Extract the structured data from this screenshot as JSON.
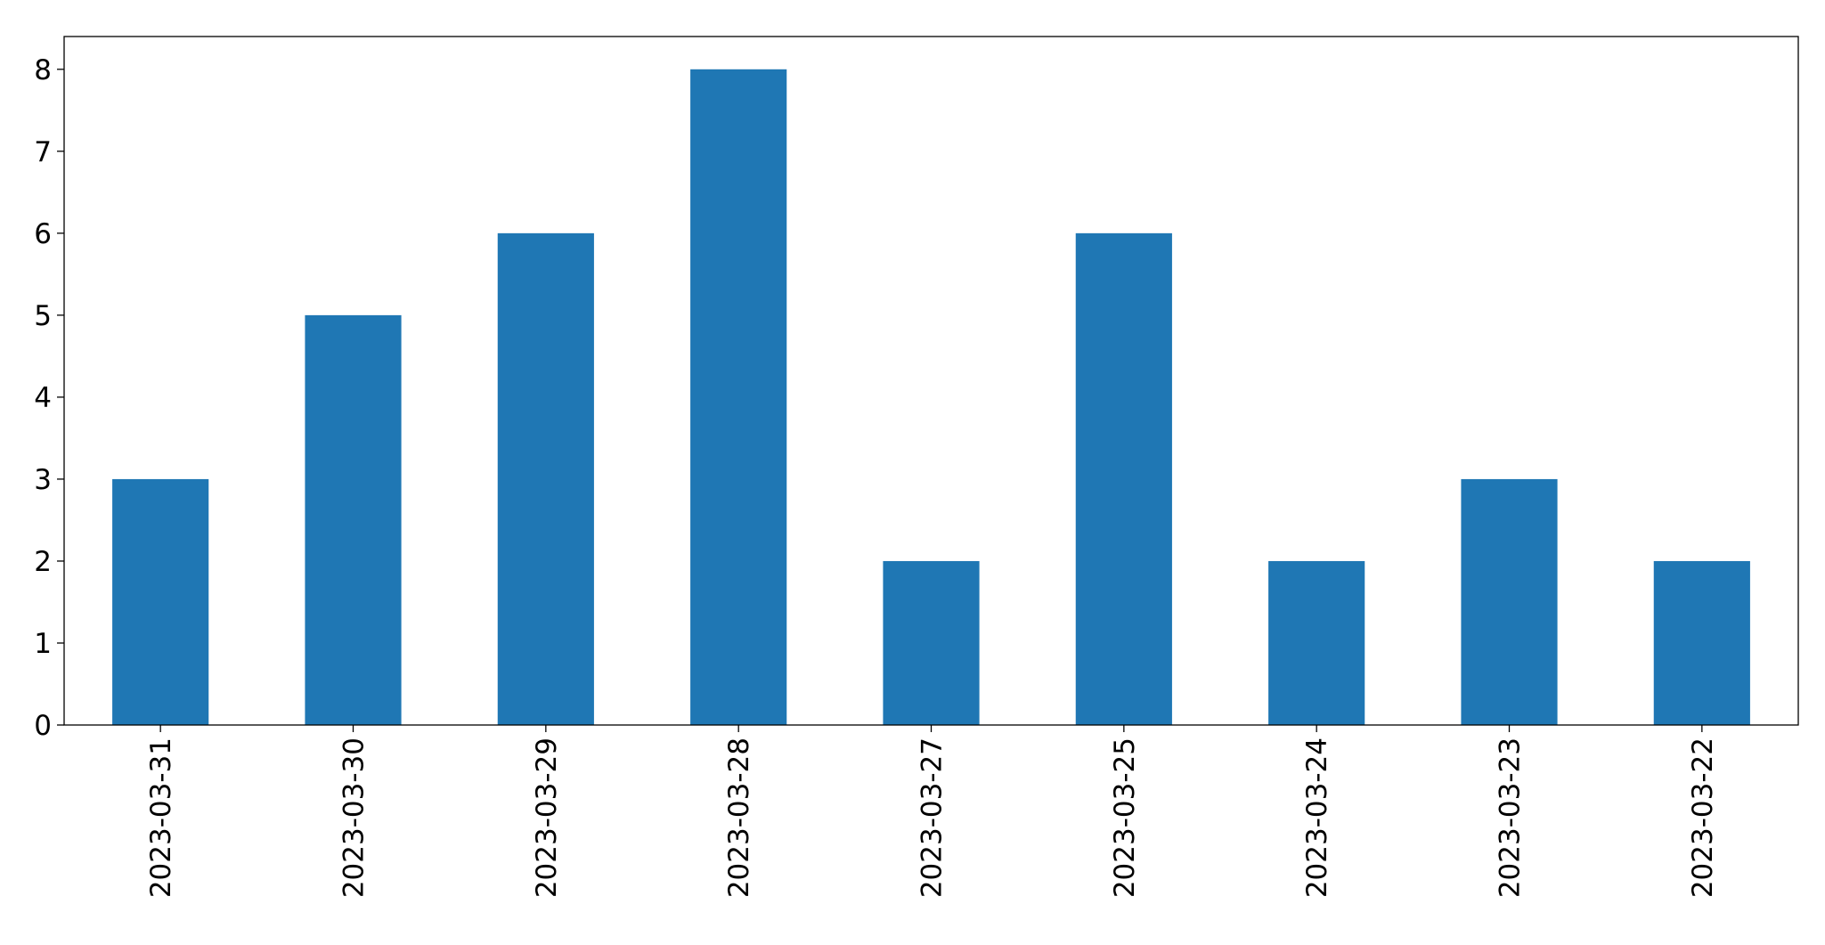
{
  "chart_data": {
    "type": "bar",
    "categories": [
      "2023-03-31",
      "2023-03-30",
      "2023-03-29",
      "2023-03-28",
      "2023-03-27",
      "2023-03-25",
      "2023-03-24",
      "2023-03-23",
      "2023-03-22"
    ],
    "values": [
      3,
      5,
      6,
      8,
      2,
      6,
      2,
      3,
      2
    ],
    "color": "#1f77b4",
    "ylim": [
      0,
      8.4
    ],
    "yticks": [
      0,
      1,
      2,
      3,
      4,
      5,
      6,
      7,
      8
    ],
    "grid": false
  }
}
